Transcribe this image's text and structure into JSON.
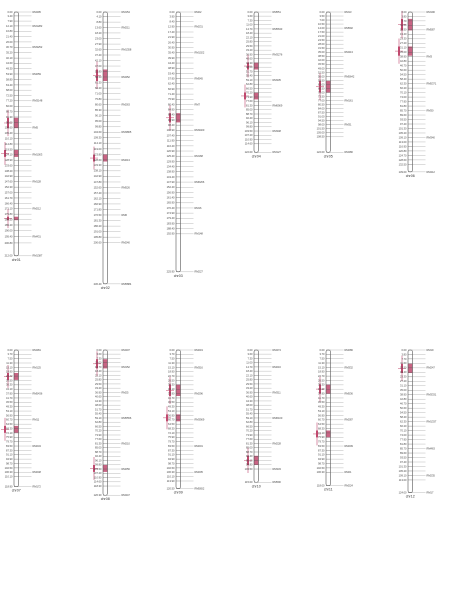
{
  "colors": {
    "chromosome": "#555555",
    "qtl": "#c0496e",
    "text": "#444444",
    "leader": "#777777"
  },
  "linkage_groups": [
    {
      "name": "chr01",
      "length": 212.0,
      "ticks": [
        0.0,
        3.4,
        7.9,
        12.1,
        16.8,
        21.4,
        26.0,
        30.7,
        35.2,
        40.1,
        44.6,
        49.3,
        53.9,
        58.8,
        63.4,
        68.0,
        72.5,
        77.2,
        82.0,
        86.7,
        91.3,
        96.0,
        100.6,
        105.4,
        110.1,
        114.8,
        119.5,
        124.1,
        128.9,
        133.6,
        138.2,
        142.9,
        147.6,
        152.3,
        157.0,
        161.7,
        166.4,
        171.1,
        175.8,
        180.5,
        185.2,
        190.0,
        195.4,
        200.8,
        212.0
      ],
      "markers": [
        {
          "pos": 0.0,
          "name": "RM495"
        },
        {
          "pos": 12.1,
          "name": "RM1282"
        },
        {
          "pos": 30.7,
          "name": "RM3252"
        },
        {
          "pos": 53.9,
          "name": "RM259"
        },
        {
          "pos": 77.2,
          "name": "RM3148"
        },
        {
          "pos": 100.6,
          "name": "RM5"
        },
        {
          "pos": 124.1,
          "name": "RM1003"
        },
        {
          "pos": 147.6,
          "name": "RM128"
        },
        {
          "pos": 171.1,
          "name": "RM212"
        },
        {
          "pos": 195.4,
          "name": "RM431"
        },
        {
          "pos": 212.0,
          "name": "RM1387"
        }
      ],
      "qtl": [
        {
          "start": 92,
          "end": 101
        },
        {
          "start": 120,
          "end": 126
        },
        {
          "start": 178,
          "end": 181
        }
      ]
    },
    {
      "name": "chr02",
      "length": 236.4,
      "ticks": [
        0.0,
        4.1,
        8.8,
        13.6,
        18.2,
        23.0,
        27.9,
        32.6,
        37.4,
        42.1,
        47.0,
        51.8,
        56.5,
        61.3,
        66.2,
        71.0,
        75.8,
        80.6,
        85.3,
        90.1,
        95.0,
        99.8,
        104.6,
        109.3,
        114.1,
        119.0,
        123.8,
        128.6,
        133.3,
        138.1,
        142.9,
        147.8,
        152.6,
        157.4,
        162.1,
        166.9,
        171.8,
        176.5,
        181.3,
        186.2,
        191.0,
        195.8,
        200.6,
        236.4
      ],
      "markers": [
        {
          "pos": 0.0,
          "name": "RM154"
        },
        {
          "pos": 13.6,
          "name": "RM211"
        },
        {
          "pos": 32.6,
          "name": "RM1358"
        },
        {
          "pos": 56.5,
          "name": "RM452"
        },
        {
          "pos": 80.6,
          "name": "RM263"
        },
        {
          "pos": 104.6,
          "name": "RM3865"
        },
        {
          "pos": 128.6,
          "name": "RM213"
        },
        {
          "pos": 152.6,
          "name": "RM526"
        },
        {
          "pos": 176.5,
          "name": "RM6"
        },
        {
          "pos": 200.6,
          "name": "RM240"
        },
        {
          "pos": 236.4,
          "name": "RM5884"
        }
      ],
      "qtl": [
        {
          "start": 50,
          "end": 60
        },
        {
          "start": 124,
          "end": 130
        }
      ]
    },
    {
      "name": "chr03",
      "length": 225.9,
      "ticks": [
        0.0,
        3.9,
        8.4,
        12.9,
        17.4,
        21.9,
        26.4,
        30.9,
        35.4,
        39.9,
        44.4,
        48.9,
        53.4,
        57.9,
        62.4,
        66.9,
        71.4,
        75.9,
        80.4,
        84.9,
        89.4,
        93.9,
        98.4,
        102.9,
        107.4,
        111.9,
        116.4,
        120.9,
        125.4,
        129.9,
        134.4,
        138.9,
        143.4,
        147.9,
        152.4,
        156.9,
        161.4,
        165.9,
        170.4,
        174.9,
        179.4,
        183.9,
        188.4,
        192.9,
        225.9
      ],
      "markers": [
        {
          "pos": 0.0,
          "name": "RM22"
        },
        {
          "pos": 12.9,
          "name": "RM231"
        },
        {
          "pos": 35.4,
          "name": "RM1022"
        },
        {
          "pos": 57.9,
          "name": "RM545"
        },
        {
          "pos": 80.4,
          "name": "RM7"
        },
        {
          "pos": 102.9,
          "name": "RM3400"
        },
        {
          "pos": 125.4,
          "name": "RM168"
        },
        {
          "pos": 147.9,
          "name": "RM6266"
        },
        {
          "pos": 170.4,
          "name": "RM16"
        },
        {
          "pos": 192.9,
          "name": "RM148"
        },
        {
          "pos": 225.9,
          "name": "RM227"
        }
      ],
      "qtl": [
        {
          "start": 88,
          "end": 96
        }
      ]
    },
    {
      "name": "chr04",
      "length": 122.0,
      "ticks": [
        0.0,
        3.6,
        7.3,
        11.0,
        14.7,
        18.4,
        22.1,
        25.8,
        29.5,
        33.2,
        36.9,
        40.6,
        44.3,
        48.0,
        51.7,
        55.4,
        59.1,
        62.8,
        66.5,
        70.2,
        73.9,
        77.6,
        81.3,
        85.0,
        88.7,
        92.4,
        96.1,
        99.8,
        103.5,
        107.2,
        110.9,
        114.6,
        122.0
      ],
      "markers": [
        {
          "pos": 0.0,
          "name": "RM551"
        },
        {
          "pos": 14.7,
          "name": "RM5633"
        },
        {
          "pos": 36.9,
          "name": "RM3276"
        },
        {
          "pos": 59.1,
          "name": "RM335"
        },
        {
          "pos": 81.3,
          "name": "RM6909"
        },
        {
          "pos": 103.5,
          "name": "RM348"
        },
        {
          "pos": 122.0,
          "name": "RM127"
        }
      ],
      "qtl": [
        {
          "start": 44,
          "end": 50
        },
        {
          "start": 70,
          "end": 76
        }
      ]
    },
    {
      "name": "chr05",
      "length": 122.0,
      "ticks": [
        0.0,
        3.5,
        7.0,
        10.5,
        14.0,
        17.5,
        21.0,
        24.5,
        28.0,
        31.5,
        35.0,
        38.5,
        42.0,
        45.5,
        49.0,
        52.5,
        56.0,
        59.5,
        63.0,
        66.5,
        70.0,
        73.5,
        77.0,
        80.5,
        84.0,
        87.5,
        91.0,
        94.5,
        98.0,
        101.5,
        105.0,
        108.5,
        122.0
      ],
      "markers": [
        {
          "pos": 0.0,
          "name": "RM13"
        },
        {
          "pos": 14.0,
          "name": "RM592"
        },
        {
          "pos": 35.0,
          "name": "RM413"
        },
        {
          "pos": 56.0,
          "name": "RM5642"
        },
        {
          "pos": 77.0,
          "name": "RM161"
        },
        {
          "pos": 98.0,
          "name": "RM31"
        },
        {
          "pos": 122.0,
          "name": "RM480"
        }
      ],
      "qtl": [
        {
          "start": 60,
          "end": 70
        }
      ]
    },
    {
      "name": "chr06",
      "length": 139.0,
      "ticks": [
        0.0,
        3.8,
        7.7,
        11.6,
        15.5,
        19.4,
        23.3,
        27.2,
        31.1,
        35.0,
        38.9,
        42.8,
        46.7,
        50.6,
        54.5,
        58.4,
        62.3,
        66.2,
        70.1,
        74.0,
        77.9,
        81.8,
        85.7,
        89.6,
        93.5,
        97.4,
        101.3,
        105.2,
        109.1,
        113.0,
        116.9,
        120.8,
        124.7,
        128.6,
        132.5,
        139.0
      ],
      "markers": [
        {
          "pos": 0.0,
          "name": "RM190"
        },
        {
          "pos": 15.5,
          "name": "RM587"
        },
        {
          "pos": 38.9,
          "name": "RM3"
        },
        {
          "pos": 62.3,
          "name": "RM5371"
        },
        {
          "pos": 85.7,
          "name": "RM30"
        },
        {
          "pos": 109.1,
          "name": "RM340"
        },
        {
          "pos": 139.0,
          "name": "RM412"
        }
      ],
      "qtl": [
        {
          "start": 6,
          "end": 16
        },
        {
          "start": 30,
          "end": 38
        }
      ]
    },
    {
      "name": "chr07",
      "length": 118.9,
      "ticks": [
        0.0,
        3.7,
        7.5,
        11.3,
        15.1,
        18.9,
        22.7,
        26.5,
        30.3,
        34.1,
        37.9,
        41.7,
        45.5,
        49.3,
        53.1,
        56.9,
        60.7,
        64.5,
        68.3,
        72.1,
        75.9,
        79.7,
        83.5,
        87.3,
        91.1,
        94.9,
        98.7,
        102.5,
        106.3,
        110.1,
        118.9
      ],
      "markers": [
        {
          "pos": 0.0,
          "name": "RM481"
        },
        {
          "pos": 15.1,
          "name": "RM125"
        },
        {
          "pos": 37.9,
          "name": "RM5436"
        },
        {
          "pos": 60.7,
          "name": "RM11"
        },
        {
          "pos": 83.5,
          "name": "RM234"
        },
        {
          "pos": 106.3,
          "name": "RM248"
        },
        {
          "pos": 118.9,
          "name": "RM172"
        }
      ],
      "qtl": [
        {
          "start": 20,
          "end": 26
        },
        {
          "start": 66,
          "end": 72
        }
      ]
    },
    {
      "name": "chr08",
      "length": 126.3,
      "ticks": [
        0.0,
        3.6,
        7.3,
        11.0,
        14.7,
        18.4,
        22.1,
        25.8,
        29.5,
        33.2,
        36.9,
        40.6,
        44.3,
        48.0,
        51.7,
        55.4,
        59.1,
        62.8,
        66.5,
        70.2,
        73.9,
        77.6,
        81.3,
        85.0,
        88.7,
        92.4,
        96.1,
        99.8,
        103.5,
        107.2,
        110.9,
        114.6,
        118.3,
        126.3
      ],
      "markers": [
        {
          "pos": 0.0,
          "name": "RM407"
        },
        {
          "pos": 14.7,
          "name": "RM152"
        },
        {
          "pos": 36.9,
          "name": "RM25"
        },
        {
          "pos": 59.1,
          "name": "RM5556"
        },
        {
          "pos": 81.3,
          "name": "RM210"
        },
        {
          "pos": 103.5,
          "name": "RM256"
        },
        {
          "pos": 126.3,
          "name": "RM447"
        }
      ],
      "qtl": [
        {
          "start": 8,
          "end": 16
        },
        {
          "start": 100,
          "end": 106
        }
      ]
    },
    {
      "name": "chr09",
      "length": 120.5,
      "ticks": [
        0.0,
        3.7,
        7.5,
        11.3,
        15.1,
        18.9,
        22.7,
        26.5,
        30.3,
        34.1,
        37.9,
        41.7,
        45.5,
        49.3,
        53.1,
        56.9,
        60.7,
        64.5,
        68.3,
        72.1,
        75.9,
        79.7,
        83.5,
        87.3,
        91.1,
        94.9,
        98.7,
        102.5,
        106.3,
        110.1,
        113.9,
        120.5
      ],
      "markers": [
        {
          "pos": 0.0,
          "name": "RM219"
        },
        {
          "pos": 15.1,
          "name": "RM316"
        },
        {
          "pos": 37.9,
          "name": "RM296"
        },
        {
          "pos": 60.7,
          "name": "RM3909"
        },
        {
          "pos": 83.5,
          "name": "RM201"
        },
        {
          "pos": 106.3,
          "name": "RM205"
        },
        {
          "pos": 120.5,
          "name": "RM5652"
        }
      ],
      "qtl": [
        {
          "start": 30,
          "end": 40
        },
        {
          "start": 56,
          "end": 62
        }
      ]
    },
    {
      "name": "chr10",
      "length": 115.0,
      "ticks": [
        0.0,
        3.6,
        7.3,
        11.0,
        14.7,
        18.4,
        22.1,
        25.8,
        29.5,
        33.2,
        36.9,
        40.6,
        44.3,
        48.0,
        51.7,
        55.4,
        59.1,
        62.8,
        66.5,
        70.2,
        73.9,
        77.6,
        81.3,
        85.0,
        88.7,
        92.4,
        96.1,
        99.8,
        103.5,
        115.0
      ],
      "markers": [
        {
          "pos": 0.0,
          "name": "RM474"
        },
        {
          "pos": 14.7,
          "name": "RM216"
        },
        {
          "pos": 36.9,
          "name": "RM311"
        },
        {
          "pos": 59.1,
          "name": "RM6100"
        },
        {
          "pos": 81.3,
          "name": "RM228"
        },
        {
          "pos": 103.5,
          "name": "RM333"
        },
        {
          "pos": 115.0,
          "name": "RM590"
        }
      ],
      "qtl": [
        {
          "start": 92,
          "end": 100
        }
      ]
    },
    {
      "name": "chr11",
      "length": 118.0,
      "ticks": [
        0.0,
        3.7,
        7.5,
        11.3,
        15.1,
        18.9,
        22.7,
        26.5,
        30.3,
        34.1,
        37.9,
        41.7,
        45.5,
        49.3,
        53.1,
        56.9,
        60.7,
        64.5,
        68.3,
        72.1,
        75.9,
        79.7,
        83.5,
        87.3,
        91.1,
        94.9,
        98.7,
        102.5,
        106.3,
        118.0
      ],
      "markers": [
        {
          "pos": 0.0,
          "name": "RM286"
        },
        {
          "pos": 15.1,
          "name": "RM332"
        },
        {
          "pos": 37.9,
          "name": "RM536"
        },
        {
          "pos": 60.7,
          "name": "RM287"
        },
        {
          "pos": 83.5,
          "name": "RM209"
        },
        {
          "pos": 106.3,
          "name": "RM21"
        },
        {
          "pos": 118.0,
          "name": "RM224"
        }
      ],
      "qtl": [
        {
          "start": 30,
          "end": 38
        },
        {
          "start": 70,
          "end": 76
        }
      ]
    },
    {
      "name": "chr12",
      "length": 124.0,
      "ticks": [
        0.0,
        3.8,
        7.7,
        11.6,
        15.5,
        19.4,
        23.3,
        27.2,
        31.1,
        35.0,
        38.9,
        42.8,
        46.7,
        50.6,
        54.5,
        58.4,
        62.3,
        66.2,
        70.1,
        74.0,
        77.9,
        81.8,
        85.7,
        89.6,
        93.5,
        97.4,
        101.3,
        105.2,
        109.1,
        113.0,
        124.0
      ],
      "markers": [
        {
          "pos": 0.0,
          "name": "RM19"
        },
        {
          "pos": 15.5,
          "name": "RM247"
        },
        {
          "pos": 38.9,
          "name": "RM3331"
        },
        {
          "pos": 62.3,
          "name": "RM1337"
        },
        {
          "pos": 85.7,
          "name": "RM463"
        },
        {
          "pos": 109.1,
          "name": "RM235"
        },
        {
          "pos": 124.0,
          "name": "RM17"
        }
      ],
      "qtl": [
        {
          "start": 12,
          "end": 20
        }
      ]
    }
  ]
}
